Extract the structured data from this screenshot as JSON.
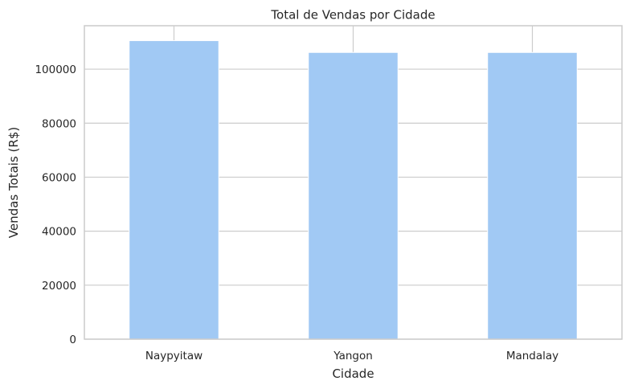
{
  "chart_data": {
    "type": "bar",
    "title": "Total de Vendas por Cidade",
    "xlabel": "Cidade",
    "ylabel": "Vendas Totais (R$)",
    "categories": [
      "Naypyitaw",
      "Yangon",
      "Mandalay"
    ],
    "values": [
      110568.7,
      106200.4,
      106197.7
    ],
    "ylim": [
      0,
      116097
    ],
    "yticks": [
      0,
      20000,
      40000,
      60000,
      80000,
      100000
    ],
    "grid": true,
    "legend": "none",
    "colors": {
      "bar": "#a1c9f4",
      "bar_edge": "#ffffff",
      "grid": "#cccccc",
      "spine": "#cccccc",
      "text": "#262626",
      "background": "#ffffff"
    }
  }
}
